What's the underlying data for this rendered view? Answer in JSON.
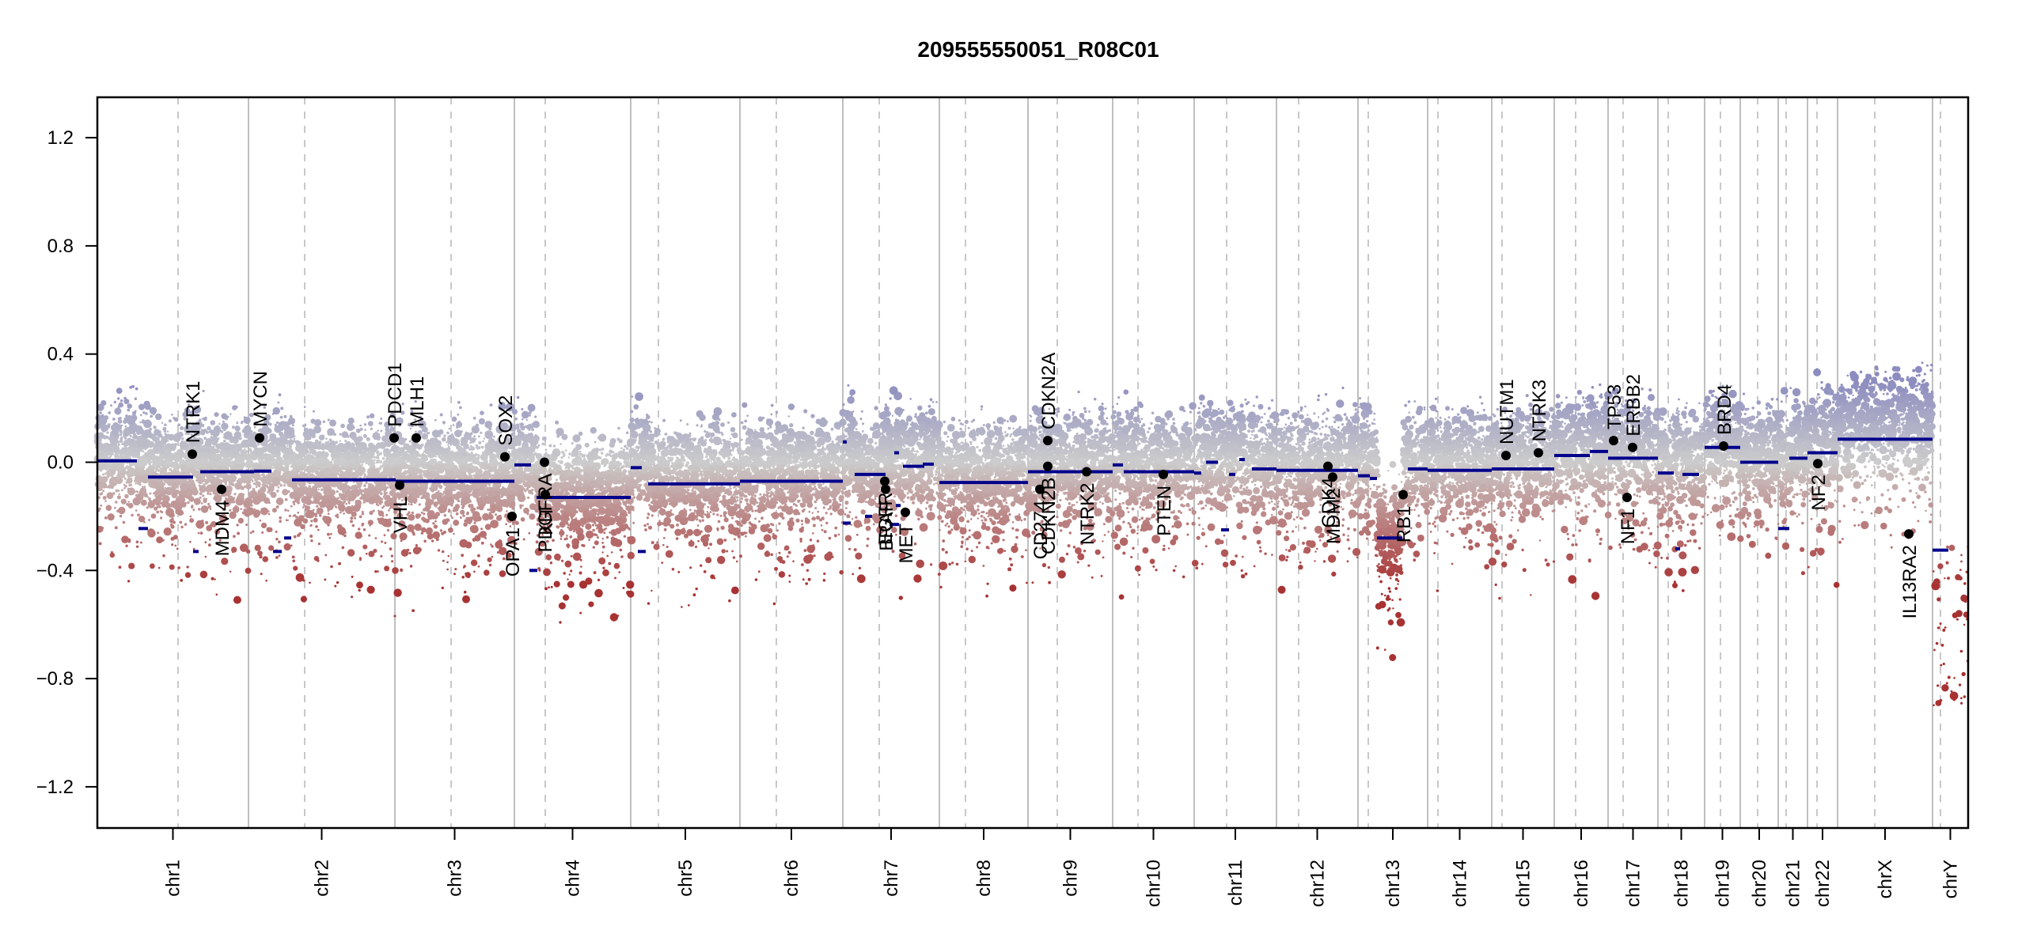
{
  "chart_data": {
    "type": "scatter",
    "title": "209555550051_R08C01",
    "xlabel": "",
    "ylabel": "",
    "ylim": [
      -1.35,
      1.35
    ],
    "yticks": [
      {
        "value": 1.2,
        "label": "1.2"
      },
      {
        "value": 0.8,
        "label": "0.8"
      },
      {
        "value": 0.4,
        "label": "0.4"
      },
      {
        "value": 0.0,
        "label": "0.0"
      },
      {
        "value": -0.4,
        "label": "−0.4"
      },
      {
        "value": -0.8,
        "label": "−0.8"
      },
      {
        "value": -1.2,
        "label": "−1.2"
      }
    ],
    "colors": {
      "gain": "#8c8cc0",
      "neutral": "#cccccc",
      "loss": "#a83232",
      "segment": "#00008b",
      "boundary": "#bfbfbf",
      "centromere": "#c8c8c8",
      "gene": "#000000"
    },
    "chromosomes": [
      {
        "name": "chr1",
        "label": "chr1",
        "start": 0,
        "end": 191,
        "centromere": 102
      },
      {
        "name": "chr2",
        "label": "chr2",
        "start": 191,
        "end": 376,
        "centromere": 262
      },
      {
        "name": "chr3",
        "label": "chr3",
        "start": 376,
        "end": 527,
        "centromere": 447
      },
      {
        "name": "chr4",
        "label": "chr4",
        "start": 527,
        "end": 674,
        "centromere": 566
      },
      {
        "name": "chr5",
        "label": "chr5",
        "start": 674,
        "end": 812,
        "centromere": 709
      },
      {
        "name": "chr6",
        "label": "chr6",
        "start": 812,
        "end": 942,
        "centromere": 858
      },
      {
        "name": "chr7",
        "label": "chr7",
        "start": 942,
        "end": 1064,
        "centromere": 988
      },
      {
        "name": "chr8",
        "label": "chr8",
        "start": 1064,
        "end": 1176,
        "centromere": 1097
      },
      {
        "name": "chr9",
        "label": "chr9",
        "start": 1176,
        "end": 1283,
        "centromere": 1213
      },
      {
        "name": "chr10",
        "label": "chr10",
        "start": 1283,
        "end": 1386,
        "centromere": 1315
      },
      {
        "name": "chr11",
        "label": "chr11",
        "start": 1386,
        "end": 1490,
        "centromere": 1427
      },
      {
        "name": "chr12",
        "label": "chr12",
        "start": 1490,
        "end": 1593,
        "centromere": 1518
      },
      {
        "name": "chr13",
        "label": "chr13",
        "start": 1593,
        "end": 1681,
        "centromere": 1606
      },
      {
        "name": "chr14",
        "label": "chr14",
        "start": 1681,
        "end": 1762,
        "centromere": 1694
      },
      {
        "name": "chr15",
        "label": "chr15",
        "start": 1762,
        "end": 1841,
        "centromere": 1775
      },
      {
        "name": "chr16",
        "label": "chr16",
        "start": 1841,
        "end": 1909,
        "centromere": 1868
      },
      {
        "name": "chr17",
        "label": "chr17",
        "start": 1909,
        "end": 1972,
        "centromere": 1928
      },
      {
        "name": "chr18",
        "label": "chr18",
        "start": 1972,
        "end": 2031,
        "centromere": 1985
      },
      {
        "name": "chr19",
        "label": "chr19",
        "start": 2031,
        "end": 2076,
        "centromere": 2051
      },
      {
        "name": "chr20",
        "label": "chr20",
        "start": 2076,
        "end": 2124,
        "centromere": 2098
      },
      {
        "name": "chr21",
        "label": "chr21",
        "start": 2124,
        "end": 2161,
        "centromere": 2134
      },
      {
        "name": "chr22",
        "label": "chr22",
        "start": 2161,
        "end": 2199,
        "centromere": 2173
      },
      {
        "name": "chrX",
        "label": "chrX",
        "start": 2199,
        "end": 2319,
        "centromere": 2246
      },
      {
        "name": "chrY",
        "label": "chrY",
        "start": 2319,
        "end": 2364,
        "centromere": 2329
      }
    ],
    "segments": [
      {
        "start": 0,
        "end": 50,
        "value": 0.005
      },
      {
        "start": 52,
        "end": 64,
        "value": -0.245
      },
      {
        "start": 64,
        "end": 121,
        "value": -0.055
      },
      {
        "start": 121,
        "end": 128,
        "value": -0.33
      },
      {
        "start": 130,
        "end": 198,
        "value": -0.035
      },
      {
        "start": 198,
        "end": 220,
        "value": -0.033
      },
      {
        "start": 222,
        "end": 233,
        "value": -0.33
      },
      {
        "start": 236,
        "end": 245,
        "value": -0.28
      },
      {
        "start": 246,
        "end": 377,
        "value": -0.065
      },
      {
        "start": 377,
        "end": 527,
        "value": -0.07
      },
      {
        "start": 527,
        "end": 548,
        "value": -0.01
      },
      {
        "start": 546,
        "end": 556,
        "value": -0.4
      },
      {
        "start": 555,
        "end": 674,
        "value": -0.13
      },
      {
        "start": 674,
        "end": 688,
        "value": -0.02
      },
      {
        "start": 683,
        "end": 693,
        "value": -0.33
      },
      {
        "start": 696,
        "end": 812,
        "value": -0.08
      },
      {
        "start": 812,
        "end": 942,
        "value": -0.07
      },
      {
        "start": 942,
        "end": 947,
        "value": 0.075
      },
      {
        "start": 942,
        "end": 952,
        "value": -0.225
      },
      {
        "start": 957,
        "end": 996,
        "value": -0.045
      },
      {
        "start": 970,
        "end": 979,
        "value": -0.2
      },
      {
        "start": 1009,
        "end": 1015,
        "value": -0.16
      },
      {
        "start": 1007,
        "end": 1013,
        "value": 0.035
      },
      {
        "start": 1001,
        "end": 1013,
        "value": -0.23
      },
      {
        "start": 1018,
        "end": 1045,
        "value": -0.015
      },
      {
        "start": 1043,
        "end": 1057,
        "value": -0.007
      },
      {
        "start": 1064,
        "end": 1176,
        "value": -0.075
      },
      {
        "start": 1176,
        "end": 1283,
        "value": -0.035
      },
      {
        "start": 1283,
        "end": 1296,
        "value": -0.01
      },
      {
        "start": 1297,
        "end": 1386,
        "value": -0.035
      },
      {
        "start": 1386,
        "end": 1395,
        "value": -0.04
      },
      {
        "start": 1401,
        "end": 1416,
        "value": 0.0
      },
      {
        "start": 1420,
        "end": 1430,
        "value": -0.25
      },
      {
        "start": 1430,
        "end": 1438,
        "value": -0.045
      },
      {
        "start": 1443,
        "end": 1450,
        "value": 0.01
      },
      {
        "start": 1459,
        "end": 1490,
        "value": -0.025
      },
      {
        "start": 1490,
        "end": 1593,
        "value": -0.03
      },
      {
        "start": 1593,
        "end": 1608,
        "value": -0.05
      },
      {
        "start": 1608,
        "end": 1617,
        "value": -0.06
      },
      {
        "start": 1617,
        "end": 1649,
        "value": -0.28
      },
      {
        "start": 1656,
        "end": 1681,
        "value": -0.025
      },
      {
        "start": 1681,
        "end": 1762,
        "value": -0.03
      },
      {
        "start": 1762,
        "end": 1841,
        "value": -0.025
      },
      {
        "start": 1841,
        "end": 1886,
        "value": 0.025
      },
      {
        "start": 1886,
        "end": 1909,
        "value": 0.04
      },
      {
        "start": 1909,
        "end": 1972,
        "value": 0.015
      },
      {
        "start": 1972,
        "end": 1992,
        "value": -0.04
      },
      {
        "start": 1994,
        "end": 2000,
        "value": -0.32
      },
      {
        "start": 2003,
        "end": 2024,
        "value": -0.045
      },
      {
        "start": 2031,
        "end": 2076,
        "value": 0.055
      },
      {
        "start": 2076,
        "end": 2124,
        "value": 0.0
      },
      {
        "start": 2124,
        "end": 2138,
        "value": -0.245
      },
      {
        "start": 2138,
        "end": 2161,
        "value": 0.015
      },
      {
        "start": 2161,
        "end": 2199,
        "value": 0.035
      },
      {
        "start": 2199,
        "end": 2319,
        "value": 0.085
      },
      {
        "start": 2319,
        "end": 2339,
        "value": -0.325
      }
    ],
    "genes": [
      {
        "name": "NTRK1",
        "pos": 120,
        "value": 0.03,
        "side": "up"
      },
      {
        "name": "MDM4",
        "pos": 157,
        "value": -0.1,
        "side": "down"
      },
      {
        "name": "MYCN",
        "pos": 205,
        "value": 0.09,
        "side": "up"
      },
      {
        "name": "PDCD1",
        "pos": 375,
        "value": 0.09,
        "side": "up"
      },
      {
        "name": "VHL",
        "pos": 382,
        "value": -0.085,
        "side": "down"
      },
      {
        "name": "MLH1",
        "pos": 403,
        "value": 0.09,
        "side": "up"
      },
      {
        "name": "SOX2",
        "pos": 515,
        "value": 0.02,
        "side": "up"
      },
      {
        "name": "OPA1",
        "pos": 524,
        "value": -0.2,
        "side": "down"
      },
      {
        "name": "PDGFRA",
        "pos": 565,
        "value": 0.0,
        "side": "down"
      },
      {
        "name": "KIT",
        "pos": 566,
        "value": -0.12,
        "side": "down"
      },
      {
        "name": "EGFR",
        "pos": 995,
        "value": -0.07,
        "side": "down"
      },
      {
        "name": "BRAF",
        "pos": 996,
        "value": -0.1,
        "side": "down"
      },
      {
        "name": "MET",
        "pos": 1021,
        "value": -0.185,
        "side": "down"
      },
      {
        "name": "CD274",
        "pos": 1191,
        "value": -0.1,
        "side": "down"
      },
      {
        "name": "CDKN2B",
        "pos": 1201,
        "value": -0.015,
        "side": "down"
      },
      {
        "name": "CDKN2A",
        "pos": 1201,
        "value": 0.08,
        "side": "up"
      },
      {
        "name": "NTRK2",
        "pos": 1250,
        "value": -0.035,
        "side": "down"
      },
      {
        "name": "PTEN",
        "pos": 1347,
        "value": -0.045,
        "side": "down"
      },
      {
        "name": "CDK4",
        "pos": 1555,
        "value": -0.015,
        "side": "down"
      },
      {
        "name": "MDM2",
        "pos": 1561,
        "value": -0.055,
        "side": "down"
      },
      {
        "name": "RB1",
        "pos": 1650,
        "value": -0.12,
        "side": "down"
      },
      {
        "name": "NUTM1",
        "pos": 1780,
        "value": 0.025,
        "side": "up"
      },
      {
        "name": "NTRK3",
        "pos": 1821,
        "value": 0.035,
        "side": "up"
      },
      {
        "name": "TP53",
        "pos": 1916,
        "value": 0.08,
        "side": "up"
      },
      {
        "name": "NF1",
        "pos": 1933,
        "value": -0.13,
        "side": "down"
      },
      {
        "name": "ERBB2",
        "pos": 1940,
        "value": 0.055,
        "side": "up"
      },
      {
        "name": "BRD4",
        "pos": 2055,
        "value": 0.06,
        "side": "up"
      },
      {
        "name": "NF2",
        "pos": 2174,
        "value": -0.005,
        "side": "down"
      },
      {
        "name": "IL13RA2",
        "pos": 2289,
        "value": -0.265,
        "side": "down"
      }
    ]
  }
}
